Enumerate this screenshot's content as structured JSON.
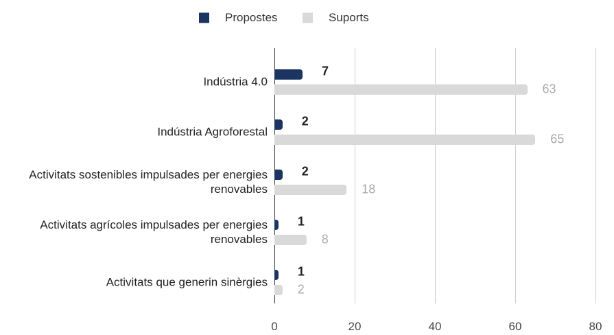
{
  "chart_data": {
    "type": "bar",
    "orientation": "horizontal",
    "categories": [
      "Indústria 4.0",
      "Indústria Agroforestal",
      "Activitats sostenibles impulsades per energies renovables",
      "Activitats agrícoles impulsades per energies renovables",
      "Activitats que generin sinèrgies"
    ],
    "series": [
      {
        "name": "Propostes",
        "color": "#1c3461",
        "values": [
          7,
          2,
          2,
          1,
          1
        ]
      },
      {
        "name": "Suports",
        "color": "#d9d9d9",
        "values": [
          63,
          65,
          18,
          8,
          2
        ]
      }
    ],
    "xlim": [
      0,
      80
    ],
    "xticks": [
      0,
      20,
      40,
      60,
      80
    ],
    "grid": true,
    "legend": "top"
  }
}
